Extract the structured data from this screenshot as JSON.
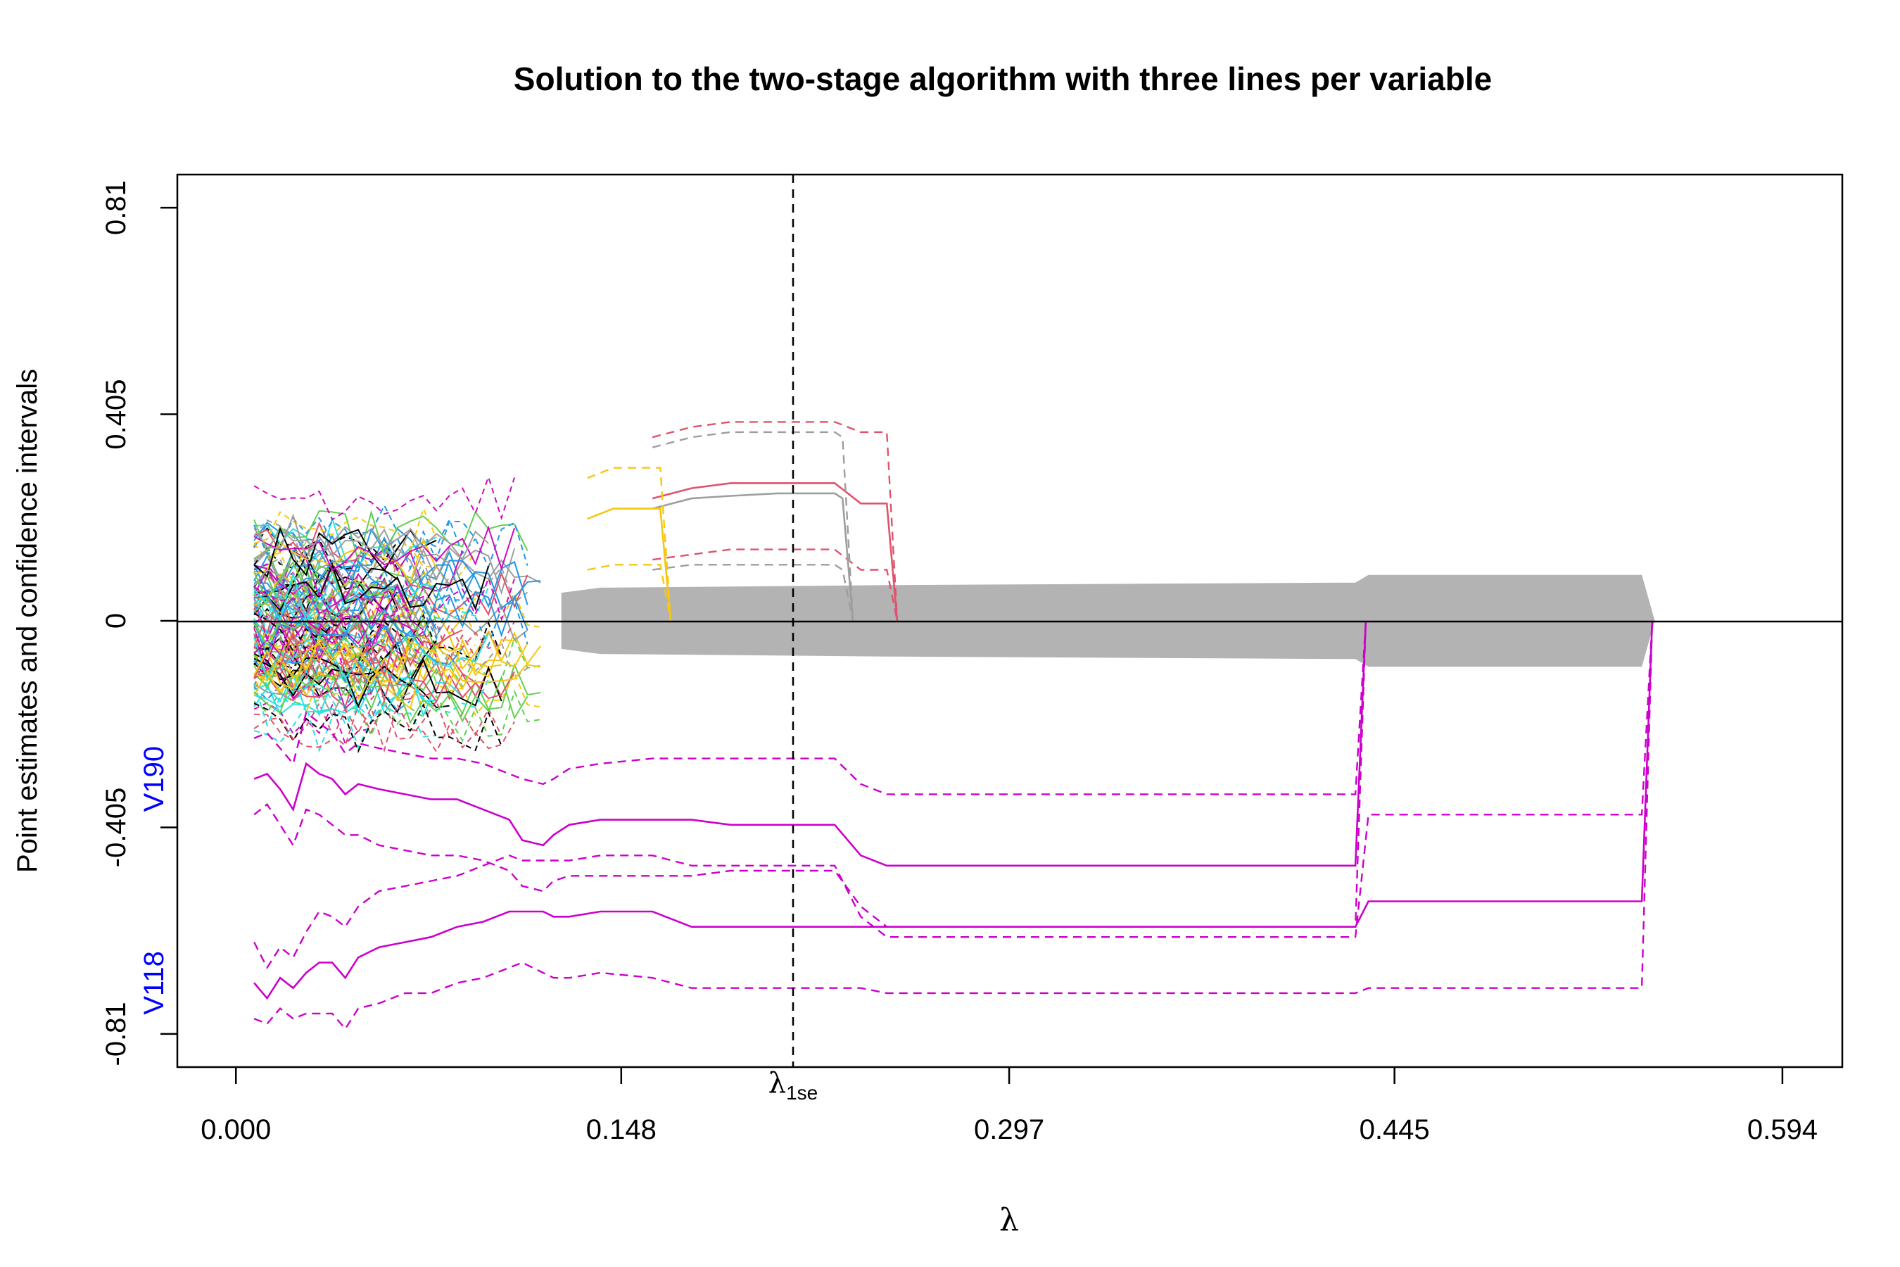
{
  "chart_data": {
    "type": "line",
    "title": "Solution to the two-stage algorithm with three lines per variable",
    "xlabel": "λ",
    "ylabel": "Point estimates and confidence intervals",
    "x_ticks": [
      "0.000",
      "0.148",
      "0.297",
      "0.445",
      "0.594"
    ],
    "x_tick_values": [
      0.0,
      0.148,
      0.297,
      0.445,
      0.594
    ],
    "y_ticks": [
      "-0.81",
      "-0.405",
      "0",
      "0.405",
      "0.81"
    ],
    "y_tick_values": [
      -0.81,
      -0.405,
      0,
      0.405,
      0.81
    ],
    "xlim": [
      -0.0225,
      0.617
    ],
    "ylim": [
      -0.875,
      0.875
    ],
    "grid": false,
    "legend": "none",
    "lambda_1se": {
      "value": 0.214,
      "label_main": "λ",
      "label_sub": "1se"
    },
    "zero_band": [
      {
        "x": 0.125,
        "half": 0.055
      },
      {
        "x": 0.14,
        "half": 0.065
      },
      {
        "x": 0.25,
        "half": 0.07
      },
      {
        "x": 0.43,
        "half": 0.075
      },
      {
        "x": 0.435,
        "half": 0.09
      },
      {
        "x": 0.54,
        "half": 0.09
      },
      {
        "x": 0.545,
        "half": 0.0
      }
    ],
    "series": [
      {
        "name": "V118",
        "color": "#CC00CC",
        "x": [
          0.007,
          0.012,
          0.017,
          0.022,
          0.027,
          0.032,
          0.037,
          0.042,
          0.047,
          0.055,
          0.065,
          0.075,
          0.085,
          0.095,
          0.105,
          0.11,
          0.118,
          0.122,
          0.128,
          0.14,
          0.16,
          0.175,
          0.19,
          0.208,
          0.23,
          0.24,
          0.25,
          0.3,
          0.36,
          0.43,
          0.435,
          0.54
        ],
        "estimate": [
          -0.71,
          -0.74,
          -0.7,
          -0.72,
          -0.69,
          -0.67,
          -0.67,
          -0.7,
          -0.66,
          -0.64,
          -0.63,
          -0.62,
          -0.6,
          -0.59,
          -0.57,
          -0.57,
          -0.57,
          -0.58,
          -0.58,
          -0.57,
          -0.57,
          -0.6,
          -0.6,
          -0.6,
          -0.6,
          -0.6,
          -0.6,
          -0.6,
          -0.6,
          -0.6,
          -0.55,
          -0.55
        ],
        "lower": [
          -0.78,
          -0.79,
          -0.76,
          -0.78,
          -0.77,
          -0.77,
          -0.77,
          -0.8,
          -0.76,
          -0.75,
          -0.73,
          -0.73,
          -0.71,
          -0.7,
          -0.68,
          -0.67,
          -0.69,
          -0.7,
          -0.7,
          -0.69,
          -0.7,
          -0.72,
          -0.72,
          -0.72,
          -0.72,
          -0.72,
          -0.73,
          -0.73,
          -0.73,
          -0.73,
          -0.72,
          -0.72
        ],
        "upper": [
          -0.63,
          -0.68,
          -0.64,
          -0.66,
          -0.61,
          -0.57,
          -0.58,
          -0.6,
          -0.56,
          -0.53,
          -0.52,
          -0.51,
          -0.5,
          -0.48,
          -0.46,
          -0.47,
          -0.47,
          -0.47,
          -0.47,
          -0.46,
          -0.46,
          -0.48,
          -0.48,
          -0.48,
          -0.48,
          -0.58,
          -0.62,
          -0.62,
          -0.62,
          -0.62,
          -0.38,
          -0.38
        ]
      },
      {
        "name": "V190",
        "color": "#CC00CC",
        "x": [
          0.007,
          0.012,
          0.017,
          0.022,
          0.027,
          0.032,
          0.037,
          0.042,
          0.047,
          0.055,
          0.065,
          0.075,
          0.085,
          0.095,
          0.105,
          0.11,
          0.118,
          0.122,
          0.128,
          0.14,
          0.16,
          0.175,
          0.19,
          0.208,
          0.23,
          0.24,
          0.25,
          0.3,
          0.36,
          0.43
        ],
        "estimate": [
          -0.31,
          -0.3,
          -0.33,
          -0.37,
          -0.28,
          -0.3,
          -0.31,
          -0.34,
          -0.32,
          -0.33,
          -0.34,
          -0.35,
          -0.35,
          -0.37,
          -0.39,
          -0.43,
          -0.44,
          -0.42,
          -0.4,
          -0.39,
          -0.39,
          -0.39,
          -0.4,
          -0.4,
          -0.4,
          -0.46,
          -0.48,
          -0.48,
          -0.48,
          -0.48
        ],
        "lower": [
          -0.38,
          -0.36,
          -0.4,
          -0.44,
          -0.37,
          -0.38,
          -0.4,
          -0.42,
          -0.42,
          -0.44,
          -0.45,
          -0.46,
          -0.46,
          -0.47,
          -0.49,
          -0.52,
          -0.53,
          -0.51,
          -0.5,
          -0.5,
          -0.5,
          -0.5,
          -0.49,
          -0.49,
          -0.49,
          -0.56,
          -0.6,
          -0.6,
          -0.6,
          -0.6
        ],
        "upper": [
          -0.23,
          -0.22,
          -0.25,
          -0.28,
          -0.18,
          -0.2,
          -0.22,
          -0.26,
          -0.24,
          -0.25,
          -0.26,
          -0.27,
          -0.27,
          -0.28,
          -0.3,
          -0.31,
          -0.32,
          -0.31,
          -0.29,
          -0.28,
          -0.27,
          -0.27,
          -0.27,
          -0.27,
          -0.27,
          -0.32,
          -0.34,
          -0.34,
          -0.34,
          -0.34
        ]
      },
      {
        "color": "#DF536B",
        "x": [
          0.16,
          0.175,
          0.19,
          0.208,
          0.23,
          0.24,
          0.25
        ],
        "estimate": [
          0.24,
          0.26,
          0.27,
          0.27,
          0.27,
          0.23,
          0.23
        ],
        "lower": [
          0.12,
          0.13,
          0.14,
          0.14,
          0.14,
          0.1,
          0.1
        ],
        "upper": [
          0.36,
          0.38,
          0.39,
          0.39,
          0.39,
          0.37,
          0.37
        ]
      },
      {
        "color": "#9E9E9E",
        "x": [
          0.16,
          0.175,
          0.19,
          0.208,
          0.23,
          0.233
        ],
        "estimate": [
          0.22,
          0.24,
          0.245,
          0.25,
          0.25,
          0.24
        ],
        "lower": [
          0.1,
          0.11,
          0.11,
          0.11,
          0.11,
          0.1
        ],
        "upper": [
          0.34,
          0.36,
          0.37,
          0.37,
          0.37,
          0.36
        ]
      },
      {
        "color": "#F5C710",
        "x": [
          0.135,
          0.145,
          0.155,
          0.163
        ],
        "estimate": [
          0.2,
          0.22,
          0.22,
          0.22
        ],
        "lower": [
          0.1,
          0.11,
          0.11,
          0.11
        ],
        "upper": [
          0.28,
          0.3,
          0.3,
          0.3
        ]
      }
    ]
  }
}
